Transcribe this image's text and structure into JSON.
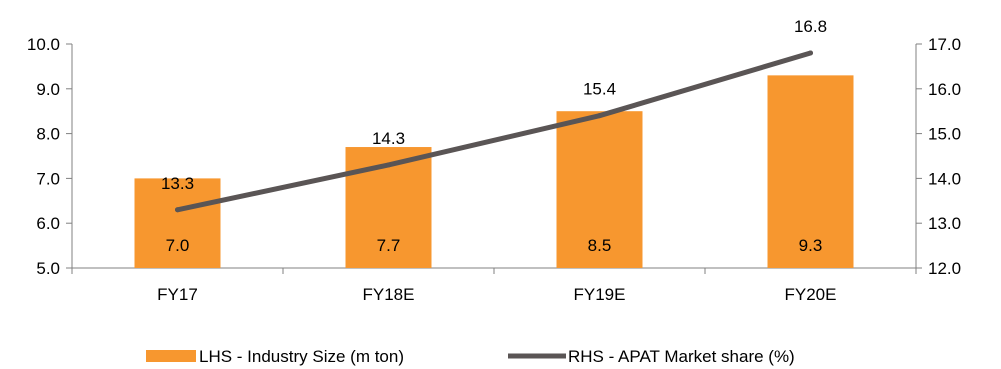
{
  "chart_data": {
    "type": "bar",
    "categories": [
      "FY17",
      "FY18E",
      "FY19E",
      "FY20E"
    ],
    "series": [
      {
        "name": "LHS - Industry Size (m ton)",
        "type": "bar",
        "axis": "left",
        "values": [
          7.0,
          7.7,
          8.5,
          9.3
        ],
        "labels": [
          "7.0",
          "7.7",
          "8.5",
          "9.3"
        ],
        "color": "#F7972F"
      },
      {
        "name": "RHS - APAT Market share (%)",
        "type": "line",
        "axis": "right",
        "values": [
          13.3,
          14.3,
          15.4,
          16.8
        ],
        "labels": [
          "13.3",
          "14.3",
          "15.4",
          "16.8"
        ],
        "color": "#5A5555"
      }
    ],
    "y_left": {
      "ylim": [
        5.0,
        10.0
      ],
      "ticks": [
        "5.0",
        "6.0",
        "7.0",
        "8.0",
        "9.0",
        "10.0"
      ]
    },
    "y_right": {
      "ylim": [
        12.0,
        17.0
      ],
      "ticks": [
        "12.0",
        "13.0",
        "14.0",
        "15.0",
        "16.0",
        "17.0"
      ]
    },
    "grid": false,
    "legend_position": "bottom"
  }
}
